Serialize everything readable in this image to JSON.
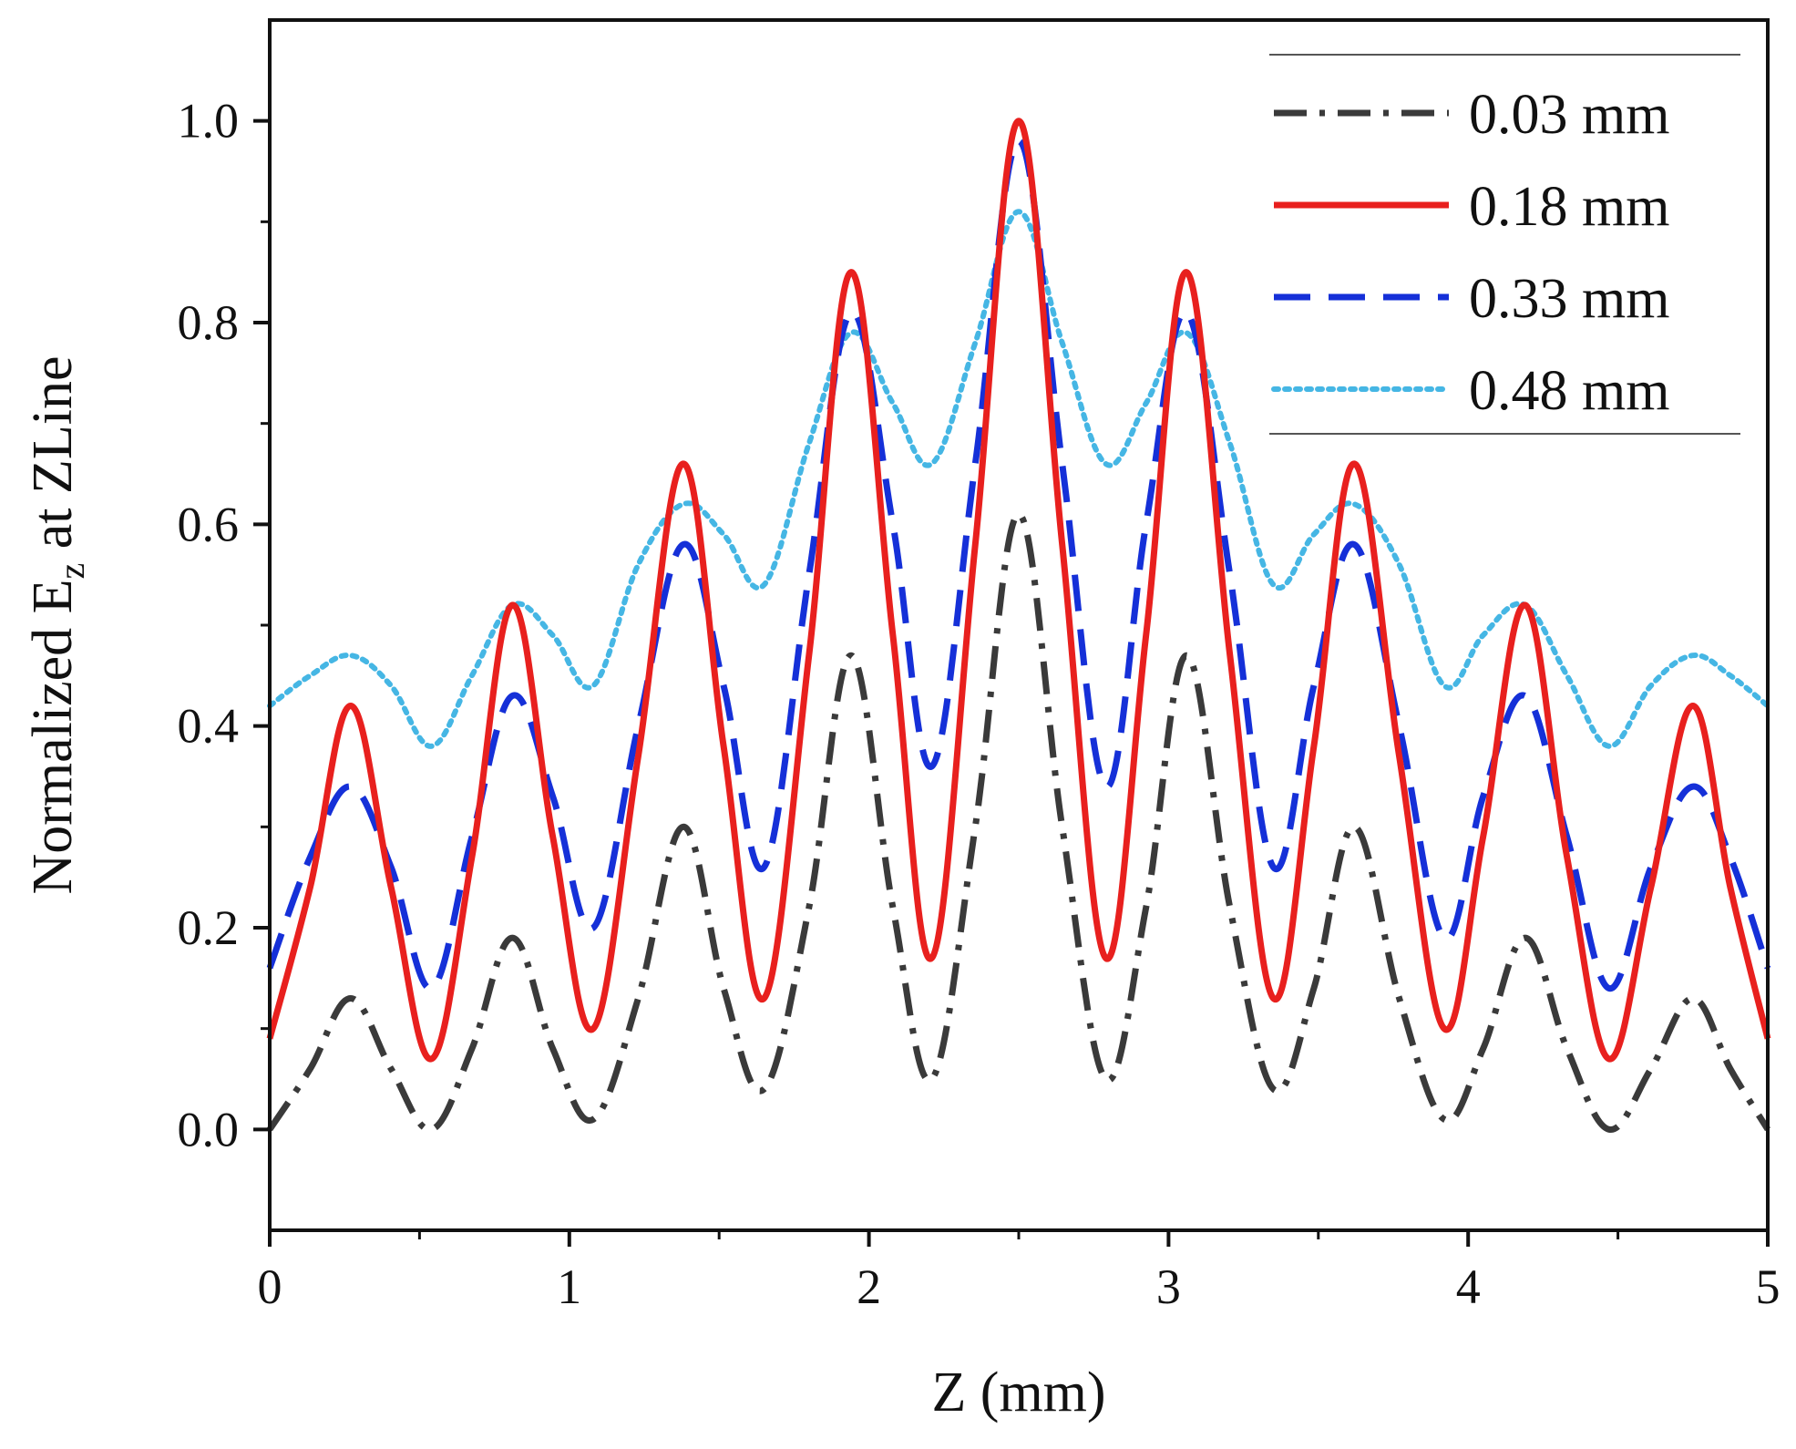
{
  "chart_data": {
    "type": "line",
    "title": "",
    "xlabel": "Z (mm)",
    "ylabel": {
      "prefix": "Normalized E",
      "subscript": "z",
      "suffix": " at ZLine"
    },
    "xlim": [
      0,
      5
    ],
    "ylim": [
      -0.1,
      1.1
    ],
    "xticks": [
      0,
      1,
      2,
      3,
      4,
      5
    ],
    "xtick_labels": [
      "0",
      "1",
      "2",
      "3",
      "4",
      "5"
    ],
    "yticks": [
      0.0,
      0.2,
      0.4,
      0.6,
      0.8,
      1.0
    ],
    "ytick_labels": [
      "0.0",
      "0.2",
      "0.4",
      "0.6",
      "0.8",
      "1.0"
    ],
    "grid": false,
    "legend_position": "top-right",
    "x": [
      0,
      0.135,
      0.27,
      0.405,
      0.54,
      0.675,
      0.81,
      0.945,
      1.08,
      1.23,
      1.38,
      1.515,
      1.65,
      1.8,
      1.94,
      2.08,
      2.21,
      2.355,
      2.5,
      2.645,
      2.79,
      2.925,
      3.06,
      3.205,
      3.35,
      3.485,
      3.62,
      3.77,
      3.92,
      4.05,
      4.19,
      4.33,
      4.47,
      4.61,
      4.75,
      4.875,
      5.0
    ],
    "series": [
      {
        "name": "0.03 mm",
        "color": "#3a3a3a",
        "style": "dash-dot",
        "values": [
          0.0,
          0.06,
          0.13,
          0.06,
          0.0,
          0.08,
          0.19,
          0.08,
          0.01,
          0.13,
          0.3,
          0.14,
          0.04,
          0.22,
          0.47,
          0.22,
          0.05,
          0.3,
          0.61,
          0.3,
          0.05,
          0.22,
          0.47,
          0.22,
          0.04,
          0.14,
          0.3,
          0.13,
          0.01,
          0.08,
          0.19,
          0.08,
          0.0,
          0.06,
          0.13,
          0.06,
          0.0
        ]
      },
      {
        "name": "0.18 mm",
        "color": "#e8201e",
        "style": "solid",
        "values": [
          0.09,
          0.24,
          0.42,
          0.24,
          0.07,
          0.27,
          0.52,
          0.29,
          0.1,
          0.37,
          0.66,
          0.38,
          0.13,
          0.47,
          0.85,
          0.49,
          0.17,
          0.58,
          1.0,
          0.58,
          0.17,
          0.49,
          0.85,
          0.47,
          0.13,
          0.38,
          0.66,
          0.37,
          0.1,
          0.29,
          0.52,
          0.27,
          0.07,
          0.24,
          0.42,
          0.24,
          0.09
        ]
      },
      {
        "name": "0.33 mm",
        "color": "#1530d8",
        "style": "dashed",
        "values": [
          0.16,
          0.27,
          0.34,
          0.26,
          0.14,
          0.29,
          0.43,
          0.33,
          0.2,
          0.4,
          0.58,
          0.44,
          0.26,
          0.55,
          0.81,
          0.6,
          0.36,
          0.66,
          0.98,
          0.66,
          0.34,
          0.6,
          0.81,
          0.55,
          0.26,
          0.44,
          0.58,
          0.4,
          0.19,
          0.33,
          0.43,
          0.29,
          0.14,
          0.26,
          0.34,
          0.27,
          0.16
        ]
      },
      {
        "name": "0.48 mm",
        "color": "#45b6e4",
        "style": "dotted",
        "values": [
          0.42,
          0.45,
          0.47,
          0.44,
          0.38,
          0.45,
          0.52,
          0.49,
          0.44,
          0.56,
          0.62,
          0.59,
          0.54,
          0.68,
          0.79,
          0.72,
          0.66,
          0.78,
          0.91,
          0.78,
          0.66,
          0.72,
          0.79,
          0.68,
          0.54,
          0.59,
          0.62,
          0.56,
          0.44,
          0.49,
          0.52,
          0.45,
          0.38,
          0.44,
          0.47,
          0.45,
          0.42
        ]
      }
    ]
  }
}
